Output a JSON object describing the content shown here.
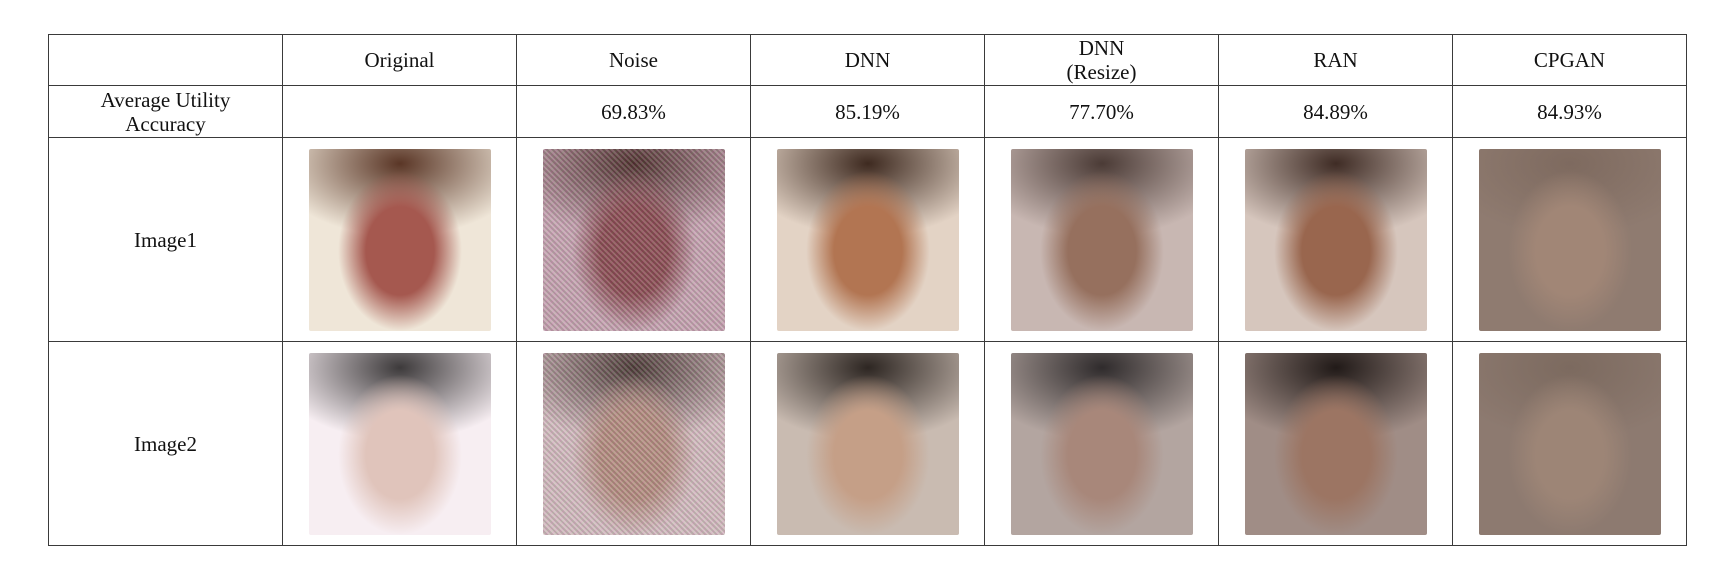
{
  "table": {
    "corner": "",
    "columns": [
      {
        "line1": "Original",
        "line2": ""
      },
      {
        "line1": "Noise",
        "line2": ""
      },
      {
        "line1": "DNN",
        "line2": ""
      },
      {
        "line1": "DNN",
        "line2": "(Resize)"
      },
      {
        "line1": "RAN",
        "line2": ""
      },
      {
        "line1": "CPGAN",
        "line2": ""
      }
    ],
    "accuracy_row": {
      "label_line1": "Average Utility",
      "label_line2": "Accuracy",
      "values": [
        "",
        "69.83%",
        "85.19%",
        "77.70%",
        "84.89%",
        "84.93%"
      ]
    },
    "image_rows": [
      {
        "label": "Image1",
        "cells": [
          {
            "method": "Original",
            "skin": "#a5584f",
            "hair": "#5a3626",
            "bg": "#efe6d8"
          },
          {
            "method": "Noise",
            "skin": "#8a4c52",
            "hair": "#4a2e2a",
            "bg": "#c9a9b7"
          },
          {
            "method": "DNN",
            "skin": "#b27552",
            "hair": "#3e2a20",
            "bg": "#e3d3c5"
          },
          {
            "method": "DNN (Resize)",
            "skin": "#96705e",
            "hair": "#4b3b36",
            "bg": "#c8b7b2"
          },
          {
            "method": "RAN",
            "skin": "#99664e",
            "hair": "#3f2c25",
            "bg": "#d6c6bd"
          },
          {
            "method": "CPGAN",
            "skin": "#a18676",
            "hair": "#7e6a5f",
            "bg": "#8f7b70"
          }
        ]
      },
      {
        "label": "Image2",
        "cells": [
          {
            "method": "Original",
            "skin": "#e0c4bb",
            "hair": "#3d3a3b",
            "bg": "#f7eef2"
          },
          {
            "method": "Noise",
            "skin": "#b79183",
            "hair": "#463833",
            "bg": "#d7c2c6"
          },
          {
            "method": "DNN",
            "skin": "#c59f87",
            "hair": "#2d2622",
            "bg": "#c9bbb1"
          },
          {
            "method": "DNN (Resize)",
            "skin": "#a8877a",
            "hair": "#2f2b2c",
            "bg": "#b3a5a0"
          },
          {
            "method": "RAN",
            "skin": "#9c7563",
            "hair": "#211a18",
            "bg": "#a08d86"
          },
          {
            "method": "CPGAN",
            "skin": "#9d8576",
            "hair": "#7c6a5f",
            "bg": "#8d7a70"
          }
        ]
      }
    ]
  }
}
